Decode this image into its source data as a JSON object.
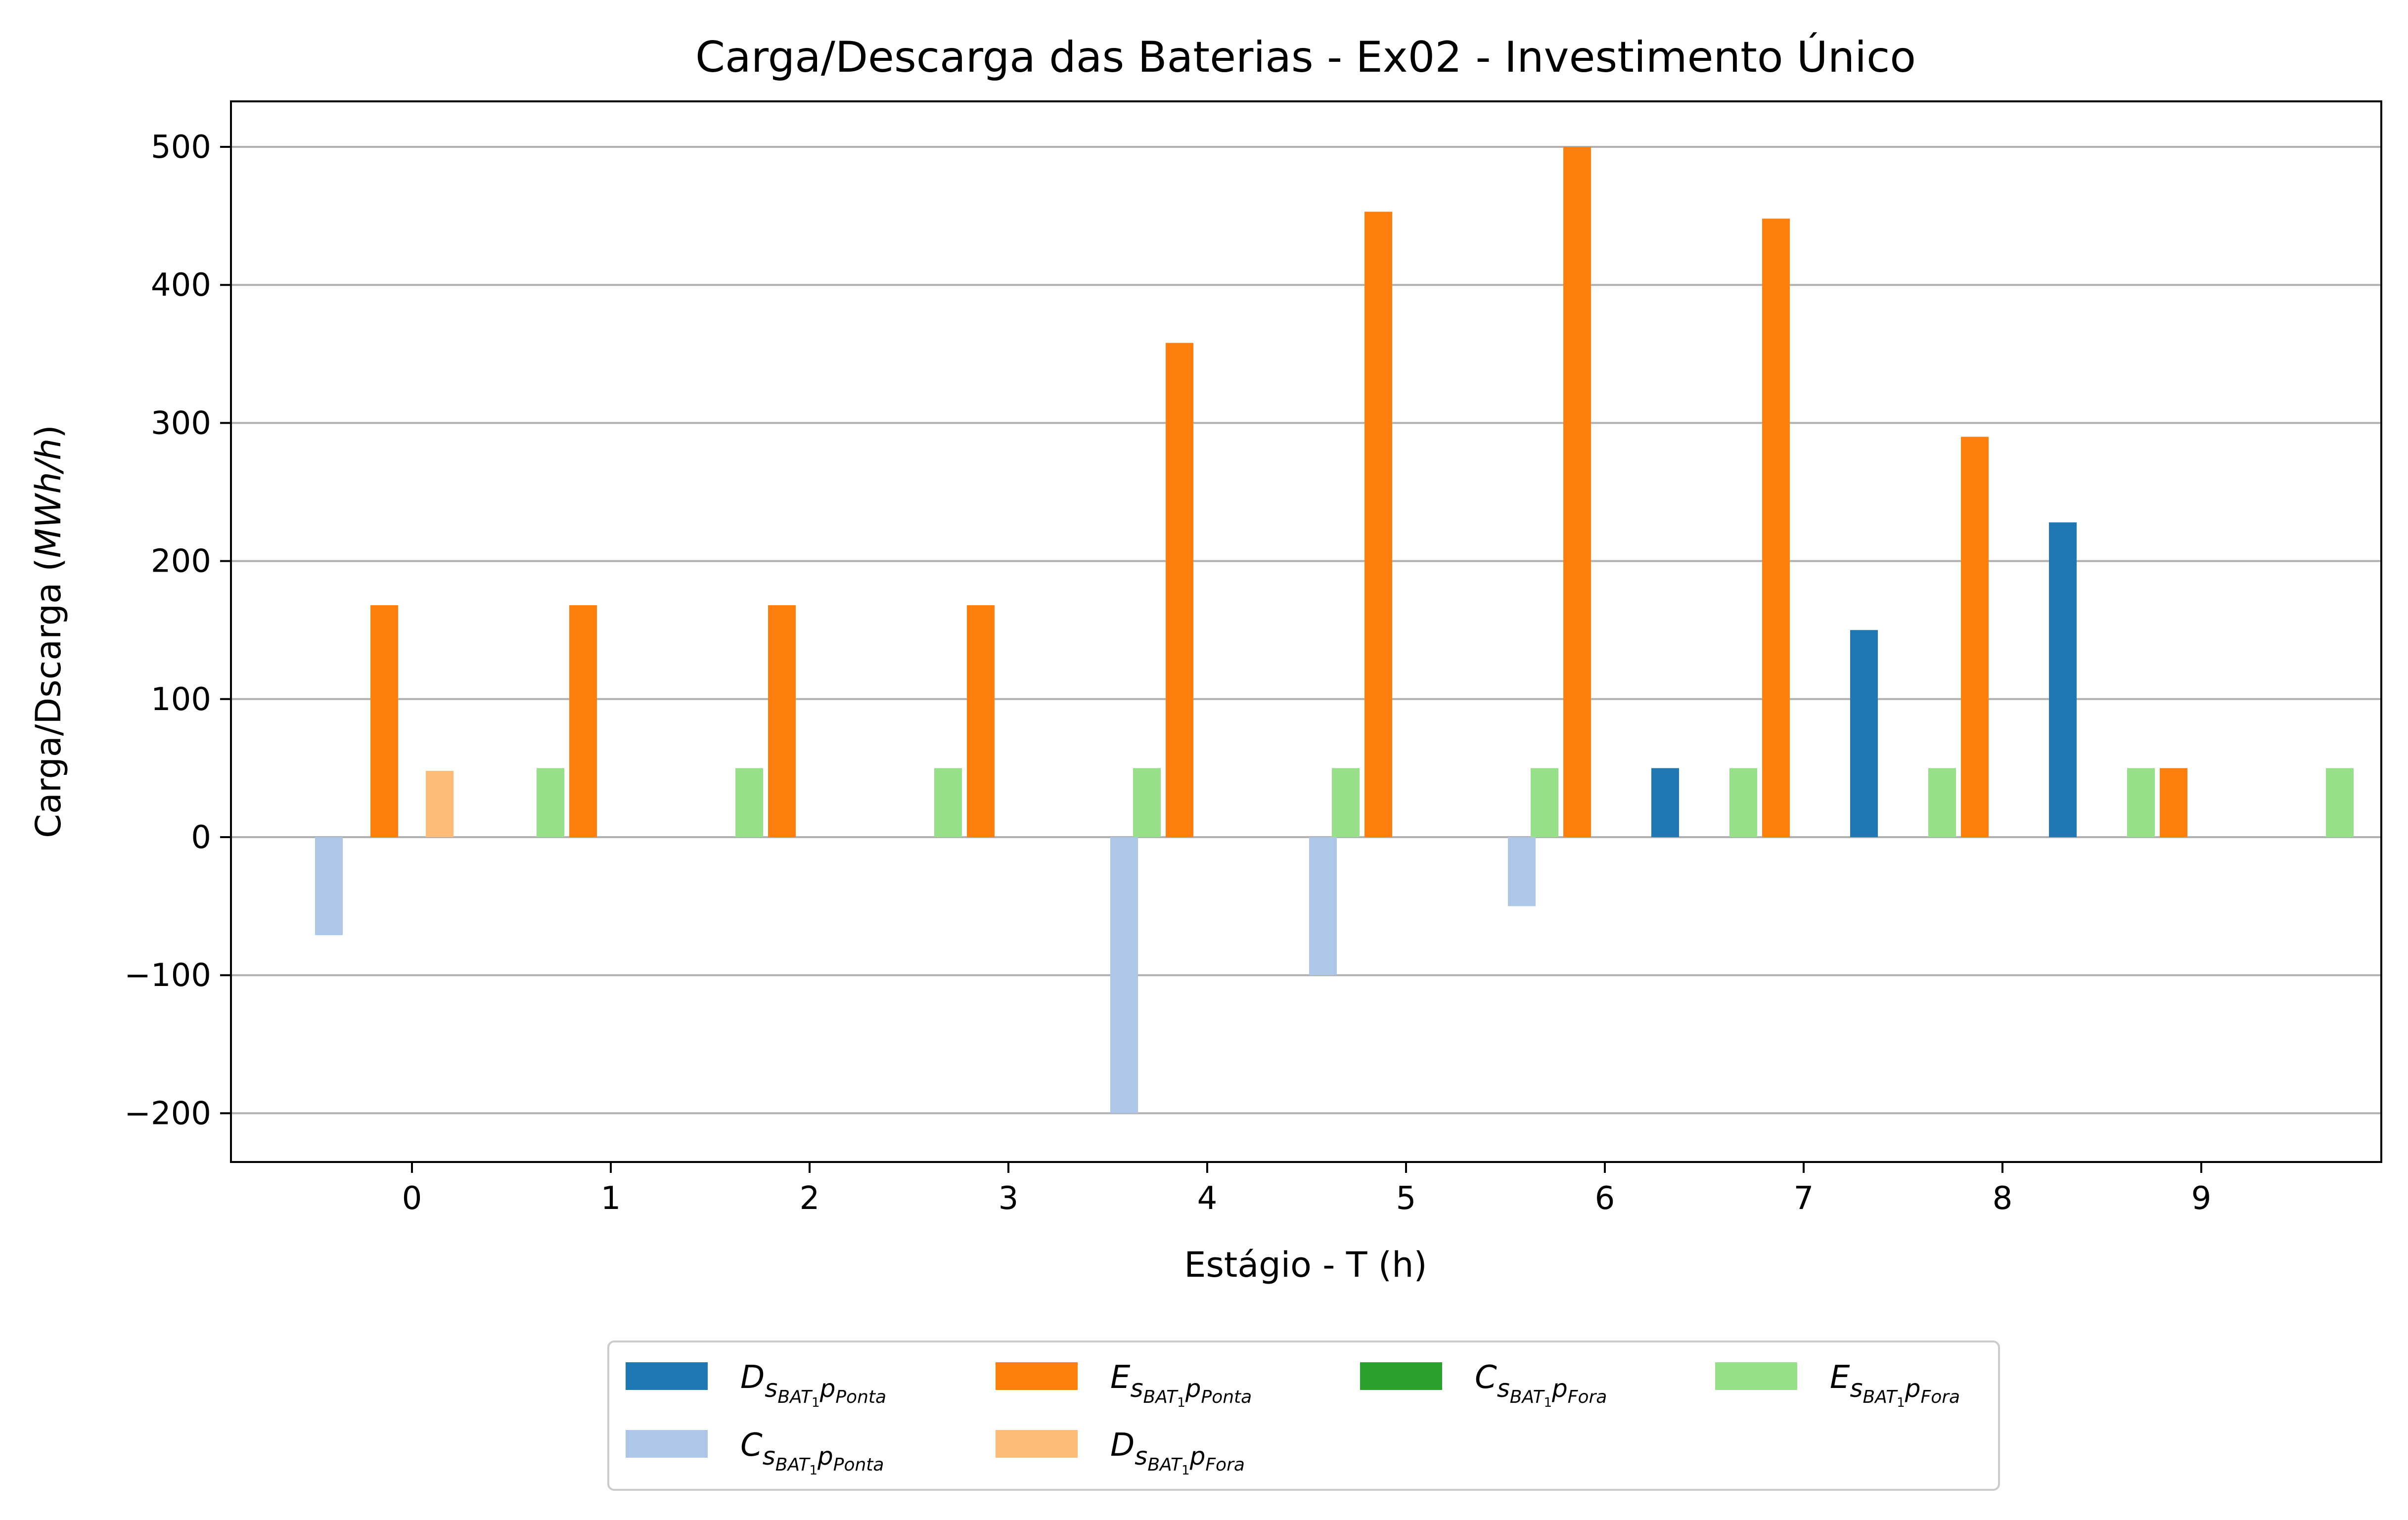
{
  "chart_data": {
    "type": "bar",
    "title": "Carga/Descarga das Baterias - Ex02 - Investimento Único",
    "xlabel": "Estágio - T (h)",
    "ylabel_prefix": "Carga/Dscarga (",
    "ylabel_unit": "MWh/h",
    "ylabel_suffix": ")",
    "categories": [
      "0",
      "1",
      "2",
      "3",
      "4",
      "5",
      "6",
      "7",
      "8",
      "9"
    ],
    "x": [
      0,
      1,
      2,
      3,
      4,
      5,
      6,
      7,
      8,
      9
    ],
    "ylim": [
      -235,
      535
    ],
    "yticks": [
      -200,
      -100,
      0,
      100,
      200,
      300,
      400,
      500
    ],
    "ytick_labels": [
      "−200",
      "−100",
      "0",
      "100",
      "200",
      "300",
      "400",
      "500"
    ],
    "grid": "y",
    "legend_position": "bottom-center",
    "series": [
      {
        "name": "D",
        "sub1": "s",
        "sub2": "BAT",
        "sub3": "1",
        "sub4": "p",
        "sub5": "Ponta",
        "color": "#1f77b4",
        "values": [
          0,
          0,
          0,
          0,
          0,
          0,
          0,
          50,
          150,
          228
        ]
      },
      {
        "name": "C",
        "sub1": "s",
        "sub2": "BAT",
        "sub3": "1",
        "sub4": "p",
        "sub5": "Ponta",
        "color": "#aec7e8",
        "values": [
          -71,
          0,
          0,
          0,
          -200,
          -100,
          -50,
          0,
          0,
          0
        ]
      },
      {
        "name": "E",
        "sub1": "s",
        "sub2": "BAT",
        "sub3": "1",
        "sub4": "p",
        "sub5": "Ponta",
        "color": "#ff7f0e",
        "values": [
          168,
          168,
          168,
          168,
          358,
          453,
          500,
          448,
          290,
          50
        ]
      },
      {
        "name": "D",
        "sub1": "s",
        "sub2": "BAT",
        "sub3": "1",
        "sub4": "p",
        "sub5": "Fora",
        "color": "#ffbb78",
        "values": [
          48,
          0,
          0,
          0,
          0,
          0,
          0,
          0,
          0,
          0
        ]
      },
      {
        "name": "C",
        "sub1": "s",
        "sub2": "BAT",
        "sub3": "1",
        "sub4": "p",
        "sub5": "Fora",
        "color": "#2ca02c",
        "values": [
          0,
          0,
          0,
          0,
          0,
          0,
          0,
          0,
          0,
          0
        ]
      },
      {
        "name": "E",
        "sub1": "s",
        "sub2": "BAT",
        "sub3": "1",
        "sub4": "p",
        "sub5": "Fora",
        "color": "#98df8a",
        "values": [
          50,
          50,
          50,
          50,
          50,
          50,
          50,
          50,
          50,
          50
        ]
      }
    ],
    "legend_order": [
      0,
      2,
      4,
      5,
      1,
      3
    ]
  }
}
